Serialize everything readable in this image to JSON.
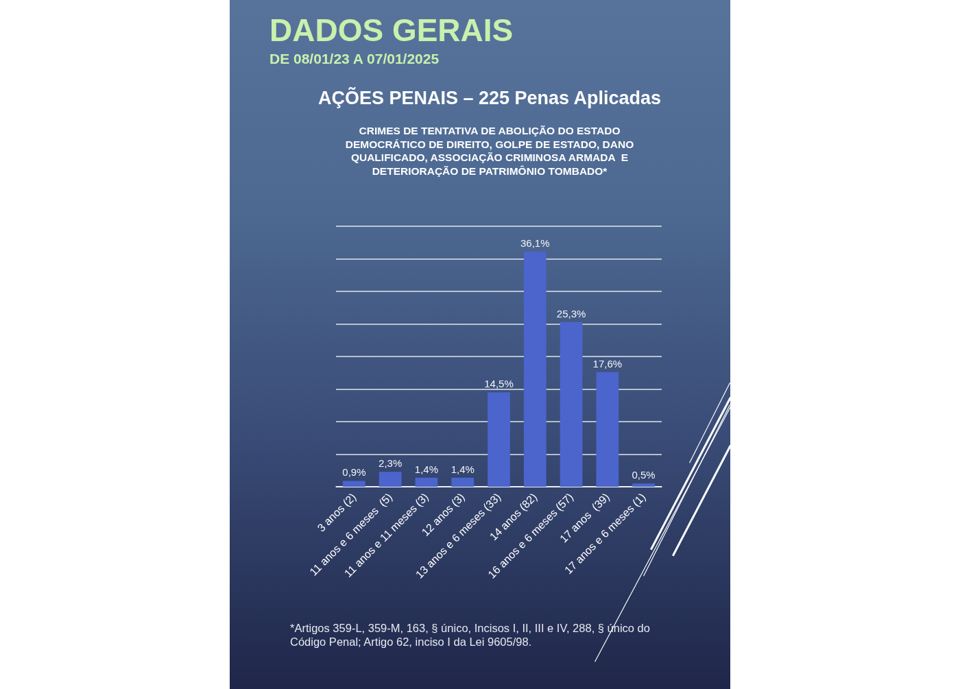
{
  "chart_data": {
    "type": "bar",
    "title": "DADOS GERAIS",
    "subtitle": "DE 08/01/23 A 07/01/2025",
    "annotations": [
      "AÇÕES PENAIS – 225 Penas Aplicadas",
      "CRIMES DE TENTATIVA DE ABOLIÇÃO DO ESTADO DEMOCRÁTICO DE DIREITO, GOLPE DE ESTADO, DANO QUALIFICADO, ASSOCIAÇÃO CRIMINOSA ARMADA  E DETERIORAÇÃO DE PATRIMÔNIO TOMBADO*",
      "*Artigos 359-L, 359-M, 163, § único, Incisos I, II, III e IV, 288, § único do Código Penal; Artigo 62, inciso I da Lei 9605/98."
    ],
    "categories": [
      "3 anos (2)",
      "11 anos e 6 meses  (5)",
      "11 anos e 11 meses (3)",
      "12 anos (3)",
      "13 anos e 6 meses (33)",
      "14 anos (82)",
      "16 anos e 6 meses (57)",
      "17 anos  (39)",
      "17 anos e 6 meses (1)"
    ],
    "values": [
      0.9,
      2.3,
      1.4,
      1.4,
      14.5,
      36.1,
      25.3,
      17.6,
      0.5
    ],
    "value_labels": [
      "0,9%",
      "2,3%",
      "1,4%",
      "1,4%",
      "14,5%",
      "36,1%",
      "25,3%",
      "17,6%",
      "0,5%"
    ],
    "color": "#4b65cc",
    "ylim": [
      0,
      40
    ],
    "yticks": [
      {
        "value": 0,
        "label": null
      },
      {
        "value": 5,
        "label": null
      },
      {
        "value": 10,
        "label": null
      },
      {
        "value": 15,
        "label": null
      },
      {
        "value": 20,
        "label": null
      },
      {
        "value": 25,
        "label": null
      },
      {
        "value": 30,
        "label": null
      },
      {
        "value": 35,
        "label": null
      },
      {
        "value": 40,
        "label": null
      }
    ],
    "grid": "y",
    "tick_labels": "x"
  }
}
